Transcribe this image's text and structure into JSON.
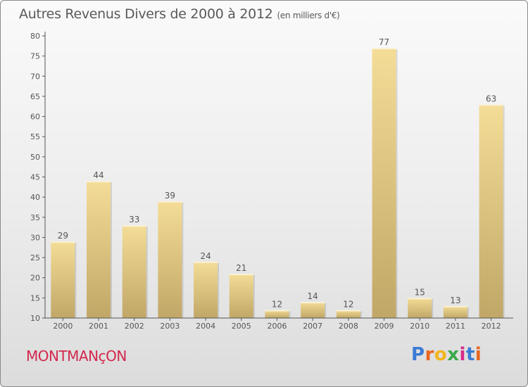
{
  "title": "Autres Revenus Divers de 2000 à 2012",
  "subtitle": "(en milliers d'€)",
  "town": "MONTMANçON",
  "brand": {
    "text": "Proxiti",
    "letter_colors": [
      "#3b7bd4",
      "#e8661f",
      "#f2b51c",
      "#3aa84a",
      "#d62a8a",
      "#3b7bd4",
      "#e8661f"
    ]
  },
  "colors": {
    "bar_top": "#f4dd97",
    "bar_bottom": "#c1a767",
    "label": "#555555",
    "axis": "#555555"
  },
  "chart_data": {
    "type": "bar",
    "categories": [
      "2000",
      "2001",
      "2002",
      "2003",
      "2004",
      "2005",
      "2006",
      "2007",
      "2008",
      "2009",
      "2010",
      "2011",
      "2012"
    ],
    "values": [
      29,
      44,
      33,
      39,
      24,
      21,
      12,
      14,
      12,
      77,
      15,
      13,
      63
    ],
    "ylim": [
      10,
      80
    ],
    "yticks": [
      10,
      15,
      20,
      25,
      30,
      35,
      40,
      45,
      50,
      55,
      60,
      65,
      70,
      75,
      80
    ],
    "grid": false,
    "data_labels": true
  }
}
